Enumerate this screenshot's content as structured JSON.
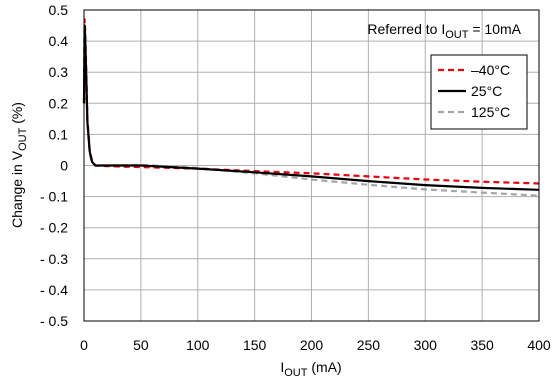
{
  "chart_data": {
    "type": "line",
    "xlabel": {
      "main": "I",
      "sub": "OUT",
      "suffix": " (mA)"
    },
    "ylabel": {
      "prefix": "Change in V",
      "sub": "OUT",
      "suffix": " (%)"
    },
    "annotation": {
      "prefix": "Referred to I",
      "sub": "OUT",
      "suffix": " = 10mA"
    },
    "xlim": [
      0,
      400
    ],
    "ylim": [
      -0.5,
      0.5
    ],
    "x_ticks": [
      0,
      50,
      100,
      150,
      200,
      250,
      300,
      350,
      400
    ],
    "x_tick_labels": [
      "0",
      "50",
      "100",
      "150",
      "200",
      "250",
      "300",
      "350",
      "400"
    ],
    "y_ticks": [
      0.5,
      0.4,
      0.3,
      0.2,
      0.1,
      0,
      -0.1,
      -0.2,
      -0.3,
      -0.4,
      -0.5
    ],
    "y_tick_labels": [
      "0.5",
      "0.4",
      "0.3",
      "0.2",
      "0.1",
      "0",
      "- 0.1",
      "- 0.2",
      "- 0.3",
      "- 0.4",
      "- 0.5"
    ],
    "grid": true,
    "legend_position": "top-right",
    "series": [
      {
        "name": "–40°C",
        "color": "#e8000f",
        "dash": "dashed",
        "x": [
          0,
          0.5,
          1,
          2,
          3,
          5,
          7,
          10,
          20,
          50,
          100,
          150,
          200,
          250,
          300,
          350,
          400
        ],
        "y": [
          0.2,
          0.47,
          0.44,
          0.3,
          0.15,
          0.05,
          0.015,
          0.0,
          -0.002,
          -0.005,
          -0.01,
          -0.018,
          -0.025,
          -0.035,
          -0.045,
          -0.052,
          -0.058
        ]
      },
      {
        "name": "25°C",
        "color": "#000000",
        "dash": "solid",
        "x": [
          0,
          0.5,
          1,
          2,
          3,
          5,
          7,
          10,
          20,
          50,
          100,
          150,
          200,
          250,
          300,
          350,
          400
        ],
        "y": [
          0.2,
          0.45,
          0.42,
          0.28,
          0.14,
          0.045,
          0.012,
          0.0,
          0.0,
          0.0,
          -0.01,
          -0.022,
          -0.035,
          -0.05,
          -0.063,
          -0.072,
          -0.078
        ]
      },
      {
        "name": "125°C",
        "color": "#a6a6a6",
        "dash": "dashed",
        "x": [
          0,
          0.5,
          1,
          2,
          3,
          5,
          7,
          10,
          20,
          50,
          100,
          150,
          200,
          250,
          300,
          350,
          400
        ],
        "y": [
          0.2,
          0.44,
          0.41,
          0.27,
          0.13,
          0.04,
          0.01,
          0.0,
          0.0,
          0.002,
          -0.008,
          -0.025,
          -0.045,
          -0.062,
          -0.077,
          -0.087,
          -0.097
        ]
      }
    ]
  }
}
